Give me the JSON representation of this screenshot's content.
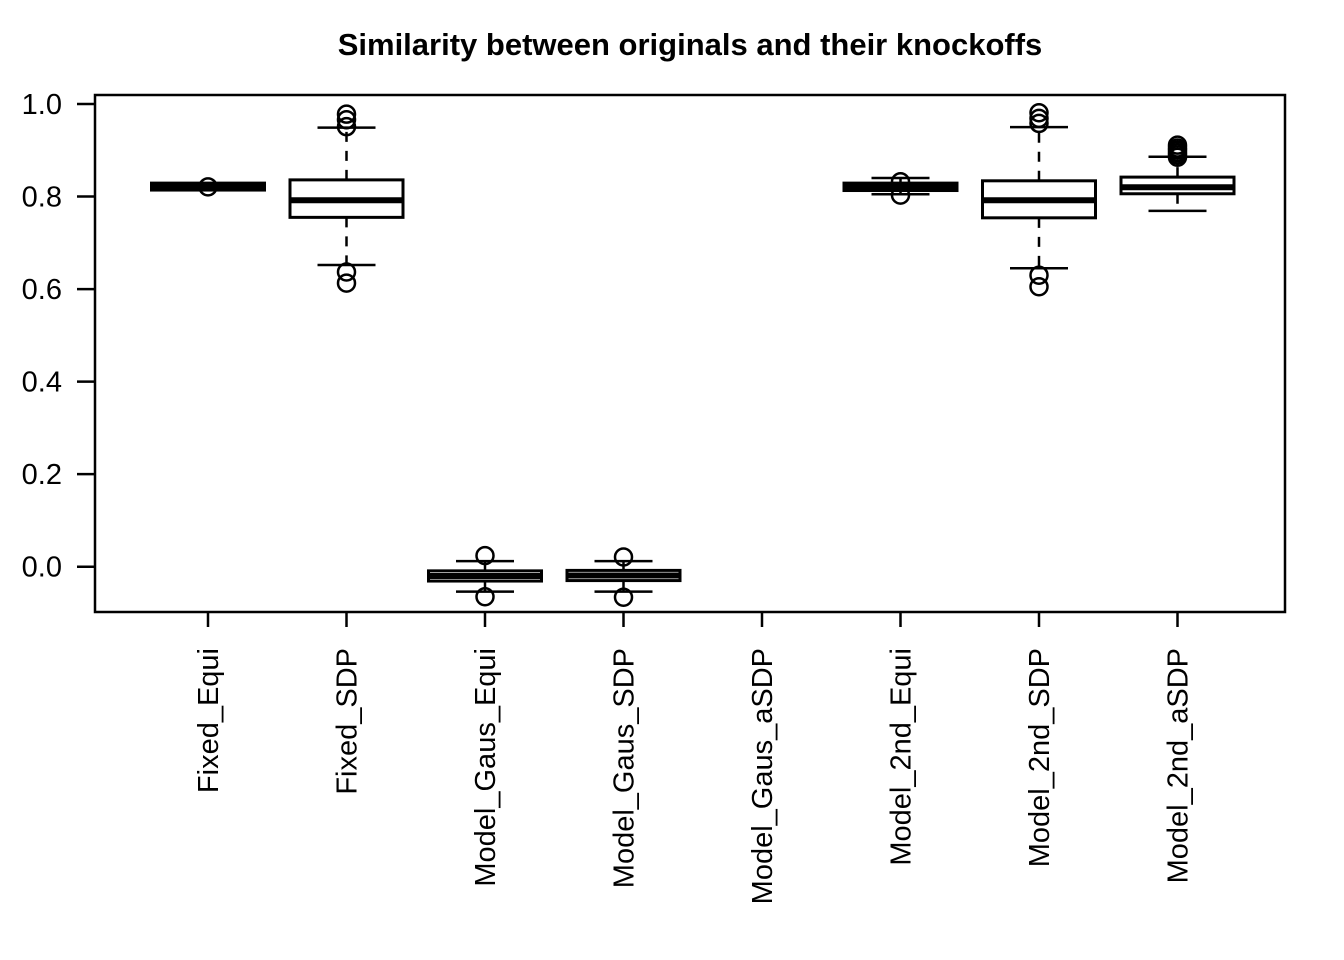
{
  "title": "Similarity between originals and their knockoffs",
  "colors": {
    "stroke": "#000000",
    "background": "#ffffff",
    "box_fill": "#ffffff"
  },
  "chart_data": {
    "type": "boxplot",
    "title": "Similarity between originals and their knockoffs",
    "xlabel": "",
    "ylabel": "",
    "grid": false,
    "legend": false,
    "ylim": [
      -0.096,
      1.019
    ],
    "categories": [
      "Fixed_Equi",
      "Fixed_SDP",
      "Model_Gaus_Equi",
      "Model_Gaus_SDP",
      "Model_Gaus_aSDP",
      "Model_2nd_Equi",
      "Model_2nd_SDP",
      "Model_2nd_aSDP"
    ],
    "y_axis": {
      "ticks": [
        {
          "label": "1.0",
          "value": 1.0
        },
        {
          "label": "0.8",
          "value": 0.8
        },
        {
          "label": "0.6",
          "value": 0.6
        },
        {
          "label": "0.4",
          "value": 0.4
        },
        {
          "label": "0.2",
          "value": 0.2
        },
        {
          "label": "0.0",
          "value": 0.0
        }
      ]
    },
    "boxes": [
      {
        "label": "Fixed_Equi",
        "q1": 0.814,
        "median": 0.821,
        "q3": 0.829,
        "whisker_low": null,
        "whisker_high": null,
        "outliers_high": [
          0.821
        ],
        "outliers_low": []
      },
      {
        "label": "Fixed_SDP",
        "q1": 0.755,
        "median": 0.792,
        "q3": 0.836,
        "whisker_low": 0.652,
        "whisker_high": 0.949,
        "outliers_high": [
          0.951,
          0.966,
          0.978
        ],
        "outliers_low": [
          0.637,
          0.613
        ]
      },
      {
        "label": "Model_Gaus_Equi",
        "q1": -0.031,
        "median": -0.02,
        "q3": -0.009,
        "whisker_low": -0.054,
        "whisker_high": 0.012,
        "outliers_high": [
          0.024
        ],
        "outliers_low": [
          -0.065
        ]
      },
      {
        "label": "Model_Gaus_SDP",
        "q1": -0.03,
        "median": -0.019,
        "q3": -0.008,
        "whisker_low": -0.054,
        "whisker_high": 0.012,
        "outliers_high": [
          0.021
        ],
        "outliers_low": [
          -0.066
        ]
      },
      {
        "label": "Model_Gaus_aSDP",
        "no_data": true
      },
      {
        "label": "Model_2nd_Equi",
        "q1": 0.813,
        "median": 0.821,
        "q3": 0.829,
        "whisker_low": 0.805,
        "whisker_high": 0.84,
        "outliers_high": [
          0.832
        ],
        "outliers_low": [
          0.803
        ]
      },
      {
        "label": "Model_2nd_SDP",
        "q1": 0.754,
        "median": 0.792,
        "q3": 0.834,
        "whisker_low": 0.645,
        "whisker_high": 0.95,
        "outliers_high": [
          0.958,
          0.969,
          0.981
        ],
        "outliers_low": [
          0.63,
          0.605
        ]
      },
      {
        "label": "Model_2nd_aSDP",
        "q1": 0.806,
        "median": 0.82,
        "q3": 0.842,
        "whisker_low": 0.769,
        "whisker_high": 0.886,
        "outliers_high": [
          0.885,
          0.89,
          0.895,
          0.9,
          0.905,
          0.911
        ],
        "outliers_low": []
      }
    ]
  }
}
